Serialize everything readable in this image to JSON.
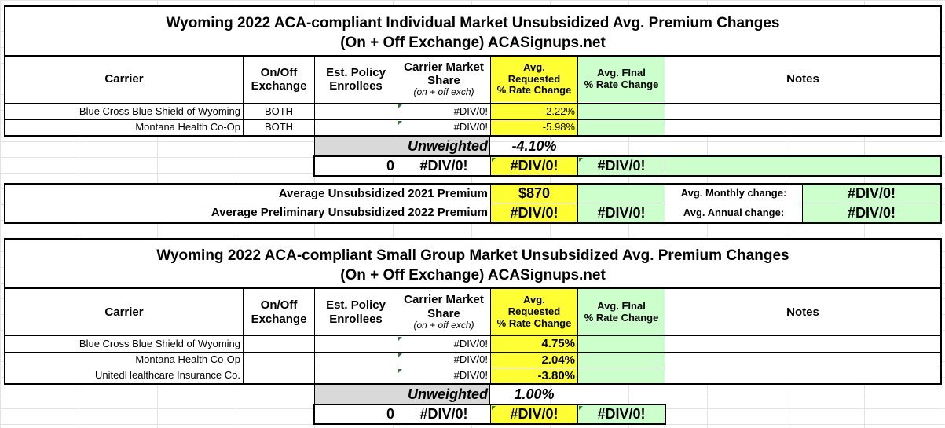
{
  "colors": {
    "yellow": "#ffff33",
    "green": "#ccffcc",
    "gray": "#d9d9d9"
  },
  "individual": {
    "title_line1": "Wyoming 2022 ACA-compliant Individual Market Unsubsidized Avg. Premium Changes",
    "title_line2": "(On + Off Exchange) ACASignups.net",
    "headers": {
      "carrier": "Carrier",
      "onoff_1": "On/Off",
      "onoff_2": "Exchange",
      "est_1": "Est. Policy",
      "est_2": "Enrollees",
      "share_1": "Carrier Market",
      "share_2": "Share",
      "share_3": "(on + off exch)",
      "req_1": "Avg.",
      "req_2": "Requested",
      "req_3": "% Rate Change",
      "fin_1": "Avg. FInal",
      "fin_2": "% Rate Change",
      "notes": "Notes"
    },
    "rows": [
      {
        "carrier": "Blue Cross Blue Shield of Wyoming",
        "exchange": "BOTH",
        "enrollees": "",
        "share": "#DIV/0!",
        "requested": "-2.22%",
        "final": "",
        "notes": ""
      },
      {
        "carrier": "Montana Health Co-Op",
        "exchange": "BOTH",
        "enrollees": "",
        "share": "#DIV/0!",
        "requested": "-5.98%",
        "final": "",
        "notes": ""
      }
    ],
    "unweighted_label": "Unweighted",
    "unweighted_value": "-4.10%",
    "totals": {
      "enrollees": "0",
      "share": "#DIV/0!",
      "requested": "#DIV/0!",
      "final": "#DIV/0!"
    },
    "premium_2021_label": "Average Unsubsidized 2021 Premium",
    "premium_2021_value": "$870",
    "premium_2022_label": "Average Preliminary Unsubsidized 2022 Premium",
    "premium_2022_value": "#DIV/0!",
    "premium_2022_final": "#DIV/0!",
    "monthly_label": "Avg. Monthly change:",
    "monthly_value": "#DIV/0!",
    "annual_label": "Avg. Annual change:",
    "annual_value": "#DIV/0!"
  },
  "small_group": {
    "title_line1": "Wyoming 2022 ACA-compliant Small Group Market Unsubsidized Avg. Premium Changes",
    "title_line2": "(On + Off Exchange) ACASignups.net",
    "headers": {
      "carrier": "Carrier",
      "onoff_1": "On/Off",
      "onoff_2": "Exchange",
      "est_1": "Est. Policy",
      "est_2": "Enrollees",
      "share_1": "Carrier Market",
      "share_2": "Share",
      "share_3": "(on + off exch)",
      "req_1": "Avg.",
      "req_2": "Requested",
      "req_3": "% Rate Change",
      "fin_1": "Avg. FInal",
      "fin_2": "% Rate Change",
      "notes": "Notes"
    },
    "rows": [
      {
        "carrier": "Blue Cross Blue Shield of Wyoming",
        "exchange": "",
        "enrollees": "",
        "share": "#DIV/0!",
        "requested": "4.75%",
        "final": "",
        "notes": ""
      },
      {
        "carrier": "Montana Health Co-Op",
        "exchange": "",
        "enrollees": "",
        "share": "#DIV/0!",
        "requested": "2.04%",
        "final": "",
        "notes": ""
      },
      {
        "carrier": "UnitedHealthcare Insurance Co.",
        "exchange": "",
        "enrollees": "",
        "share": "#DIV/0!",
        "requested": "-3.80%",
        "final": "",
        "notes": ""
      }
    ],
    "unweighted_label": "Unweighted",
    "unweighted_value": "1.00%",
    "totals": {
      "enrollees": "0",
      "share": "#DIV/0!",
      "requested": "#DIV/0!",
      "final": "#DIV/0!"
    }
  }
}
